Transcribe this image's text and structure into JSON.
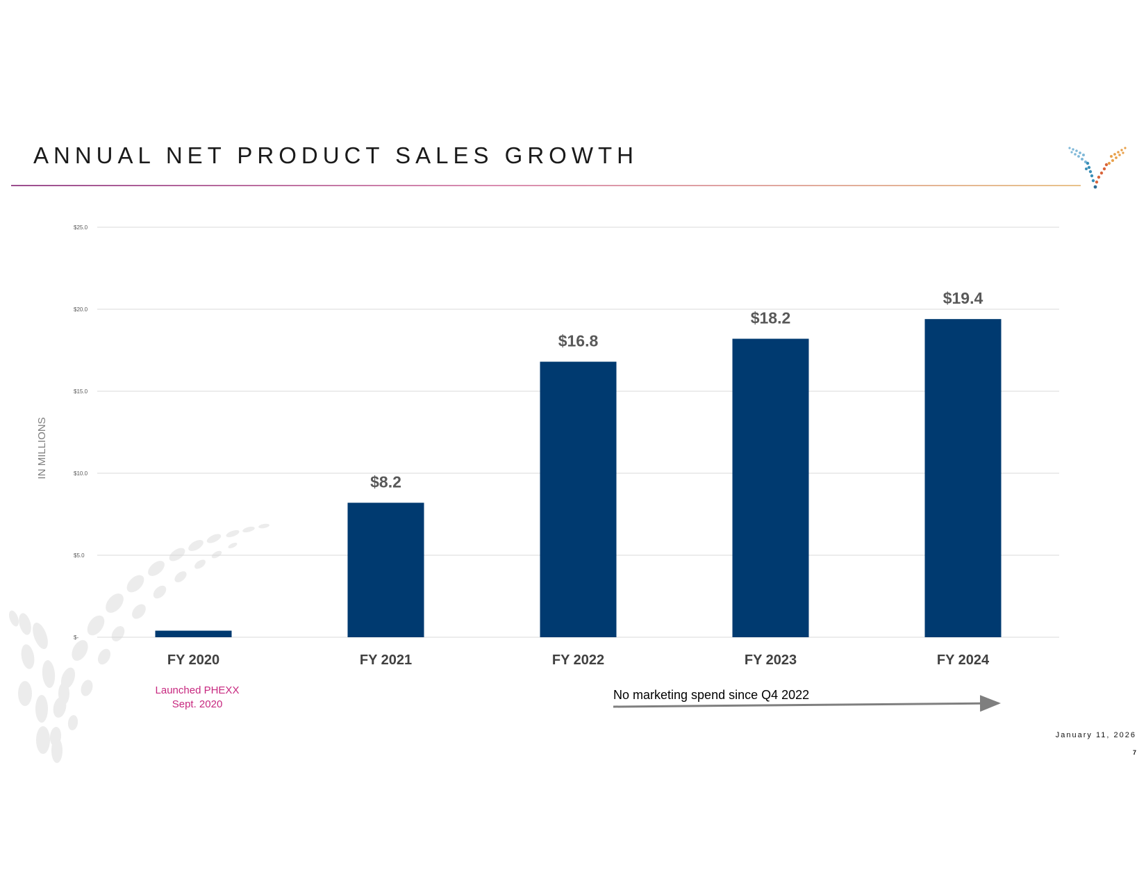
{
  "slide": {
    "title": "ANNUAL NET PRODUCT SALES GROWTH",
    "date": "January 11, 2026",
    "page_number": "7"
  },
  "colors": {
    "bar": "#003a70",
    "grid": "#d9d9d9",
    "data_label": "#595959",
    "annotation_pink": "#c7287f",
    "arrow": "#7f7f7f"
  },
  "chart_data": {
    "type": "bar",
    "title": "ANNUAL NET PRODUCT SALES GROWTH",
    "ylabel": "IN MILLIONS",
    "xlabel": "",
    "categories": [
      "FY 2020",
      "FY 2021",
      "FY 2022",
      "FY 2023",
      "FY 2024"
    ],
    "values": [
      0.4,
      8.2,
      16.8,
      18.2,
      19.4
    ],
    "data_labels": [
      "",
      "$8.2",
      "$16.8",
      "$18.2",
      "$19.4"
    ],
    "ylim": [
      0,
      25
    ],
    "yticks": [
      0,
      5,
      10,
      15,
      20,
      25
    ],
    "ytick_labels": [
      "$-",
      "$5.0",
      "$10.0",
      "$15.0",
      "$20.0",
      "$25.0"
    ],
    "grid": true,
    "annotations": {
      "launch": [
        "Launched PHEXX",
        "Sept. 2020"
      ],
      "marketing": "No marketing spend since Q4 2022"
    }
  }
}
